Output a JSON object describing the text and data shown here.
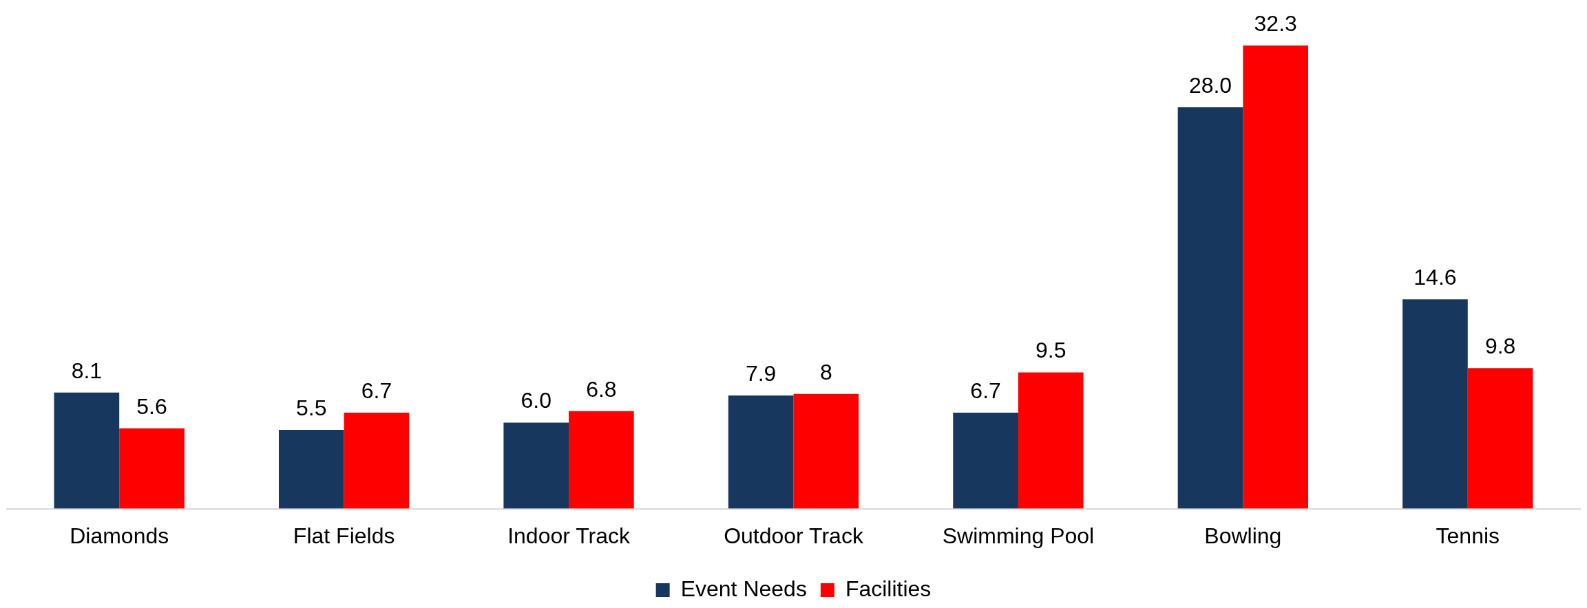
{
  "chart_data": {
    "type": "bar",
    "categories": [
      "Diamonds",
      "Flat Fields",
      "Indoor Track",
      "Outdoor Track",
      "Swimming Pool",
      "Bowling",
      "Tennis"
    ],
    "series": [
      {
        "name": "Event Needs",
        "color": "#17375e",
        "values": [
          8.1,
          5.5,
          6.0,
          7.9,
          6.7,
          28.0,
          14.6
        ],
        "value_labels": [
          "8.1",
          "5.5",
          "6.0",
          "7.9",
          "6.7",
          "28.0",
          "14.6"
        ]
      },
      {
        "name": "Facilities",
        "color": "#ff0000",
        "values": [
          5.6,
          6.7,
          6.8,
          8,
          9.5,
          32.3,
          9.8
        ],
        "value_labels": [
          "5.6",
          "6.7",
          "6.8",
          "8",
          "9.5",
          "32.3",
          "9.8"
        ]
      }
    ],
    "grid": false,
    "legend": "bottom",
    "tick_labels": "x"
  }
}
